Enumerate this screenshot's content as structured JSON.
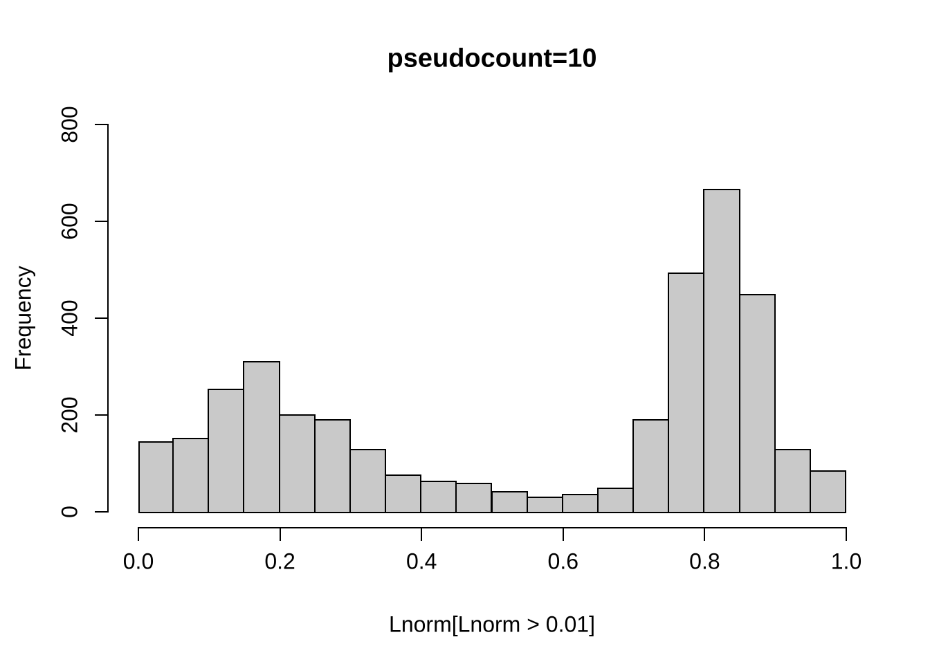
{
  "figure": {
    "background_color": "#FFFFFF",
    "text_color": "#000000"
  },
  "chart_data": {
    "type": "bar",
    "subtype": "histogram",
    "title": "pseudocount=10",
    "xlabel": "Lnorm[Lnorm > 0.01]",
    "ylabel": "Frequency",
    "bin_width": 0.05,
    "bin_edges": [
      0.0,
      0.05,
      0.1,
      0.15,
      0.2,
      0.25,
      0.3,
      0.35,
      0.4,
      0.45,
      0.5,
      0.55,
      0.6,
      0.65,
      0.7,
      0.75,
      0.8,
      0.85,
      0.9,
      0.95,
      1.0
    ],
    "counts": [
      146,
      153,
      255,
      312,
      201,
      191,
      130,
      77,
      65,
      60,
      43,
      31,
      37,
      50,
      192,
      495,
      667,
      450,
      130,
      86
    ],
    "xlim": [
      0.0,
      1.0
    ],
    "ylim": [
      0,
      800
    ],
    "x_ticks": [
      0.0,
      0.2,
      0.4,
      0.6,
      0.8,
      1.0
    ],
    "x_tick_labels": [
      "0.0",
      "0.2",
      "0.4",
      "0.6",
      "0.8",
      "1.0"
    ],
    "y_ticks": [
      0,
      200,
      400,
      600,
      800
    ],
    "y_tick_labels": [
      "0",
      "200",
      "400",
      "600",
      "800"
    ],
    "grid": false,
    "legend": null,
    "bar_fill_color": "#C9C9C9",
    "bar_border_color": "#000000",
    "axis_color": "#000000"
  }
}
